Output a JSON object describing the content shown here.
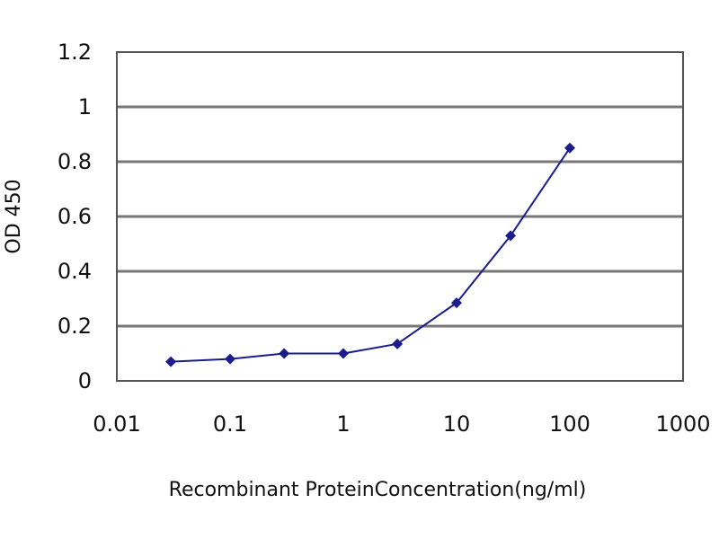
{
  "chart_data": {
    "type": "line",
    "title": "",
    "xlabel": "Recombinant ProteinConcentration(ng/ml)",
    "ylabel": "OD 450",
    "x_scale": "log",
    "xlim": [
      0.01,
      1000
    ],
    "ylim": [
      0,
      1.2
    ],
    "x_ticks": [
      "0.01",
      "0.1",
      "1",
      "10",
      "100",
      "1000"
    ],
    "y_ticks": [
      "0",
      "0.2",
      "0.4",
      "0.6",
      "0.8",
      "1",
      "1.2"
    ],
    "grid": "horizontal",
    "legend": "none",
    "series": [
      {
        "color": "#1c1c8c",
        "marker": "diamond",
        "x": [
          0.03,
          0.1,
          0.3,
          1,
          3,
          10,
          30,
          100
        ],
        "y": [
          0.07,
          0.08,
          0.1,
          0.1,
          0.135,
          0.285,
          0.53,
          0.85
        ]
      }
    ]
  }
}
